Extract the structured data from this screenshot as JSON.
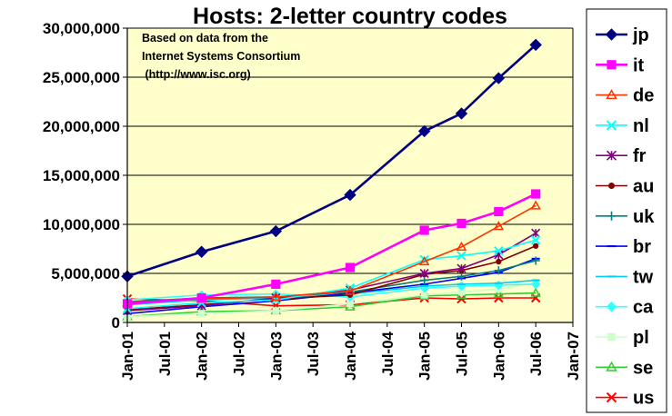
{
  "chart_data": {
    "type": "line",
    "title": "Hosts: 2-letter country codes",
    "annotation": [
      "Based on data from the",
      "Internet Systems Consortium",
      " (http://www.isc.org)"
    ],
    "x_tick_labels": [
      "Jan-01",
      "Jul-01",
      "Jan-02",
      "Jul-02",
      "Jan-03",
      "Jul-03",
      "Jan-04",
      "Jul-04",
      "Jan-05",
      "Jul-05",
      "Jan-06",
      "Jul-06",
      "Jan-07"
    ],
    "x": [
      "Jan-01",
      "Jan-02",
      "Jan-03",
      "Jan-04",
      "Jan-05",
      "Jul-05",
      "Jan-06",
      "Jul-06"
    ],
    "y_tick_labels": [
      "0",
      "5,000,000",
      "10,000,000",
      "15,000,000",
      "20,000,000",
      "25,000,000",
      "30,000,000"
    ],
    "ylim": [
      0,
      30000000
    ],
    "grid": "horizontal",
    "legend": "right",
    "series": [
      {
        "name": "jp",
        "color": "#000080",
        "marker": "diamond",
        "values": [
          4700000,
          7200000,
          9300000,
          13000000,
          19500000,
          21300000,
          24900000,
          28300000
        ]
      },
      {
        "name": "it",
        "color": "#ff00ff",
        "marker": "square",
        "values": [
          1900000,
          2500000,
          3900000,
          5600000,
          9400000,
          10100000,
          11300000,
          13100000
        ]
      },
      {
        "name": "de",
        "color": "#ff3300",
        "marker": "triangle",
        "values": [
          2000000,
          2400000,
          2600000,
          3200000,
          6200000,
          7700000,
          9800000,
          11900000
        ]
      },
      {
        "name": "nl",
        "color": "#00ffff",
        "marker": "x",
        "values": [
          1400000,
          2000000,
          2300000,
          3500000,
          6400000,
          6800000,
          7300000,
          8400000
        ]
      },
      {
        "name": "fr",
        "color": "#800080",
        "marker": "star",
        "values": [
          1200000,
          1700000,
          2500000,
          3300000,
          5000000,
          5500000,
          6900000,
          9100000
        ]
      },
      {
        "name": "au",
        "color": "#800000",
        "marker": "circle",
        "values": [
          1300000,
          1800000,
          2400000,
          2800000,
          4900000,
          5300000,
          6200000,
          7800000
        ]
      },
      {
        "name": "uk",
        "color": "#008080",
        "marker": "plus",
        "values": [
          2100000,
          2500000,
          2600000,
          3100000,
          4300000,
          4700000,
          5300000,
          6300000
        ]
      },
      {
        "name": "br",
        "color": "#0000ff",
        "marker": "dash",
        "values": [
          900000,
          1600000,
          2200000,
          3000000,
          3900000,
          4500000,
          5100000,
          6500000
        ]
      },
      {
        "name": "tw",
        "color": "#00ccff",
        "marker": "dash",
        "values": [
          1800000,
          2300000,
          2500000,
          2900000,
          3700000,
          3900000,
          4000000,
          4300000
        ]
      },
      {
        "name": "ca",
        "color": "#33ffff",
        "marker": "diamond",
        "values": [
          2300000,
          2800000,
          2900000,
          2600000,
          3500000,
          3700000,
          3800000,
          3900000
        ]
      },
      {
        "name": "pl",
        "color": "#ccffcc",
        "marker": "square",
        "values": [
          600000,
          900000,
          1200000,
          1900000,
          2800000,
          3100000,
          3400000,
          4100000
        ]
      },
      {
        "name": "se",
        "color": "#33cc33",
        "marker": "triangle",
        "values": [
          600000,
          1100000,
          1200000,
          1600000,
          2700000,
          2800000,
          2900000,
          3000000
        ]
      },
      {
        "name": "us",
        "color": "#ff0000",
        "marker": "x",
        "values": [
          2400000,
          2200000,
          1700000,
          1800000,
          2500000,
          2400000,
          2500000,
          2500000
        ]
      }
    ]
  }
}
